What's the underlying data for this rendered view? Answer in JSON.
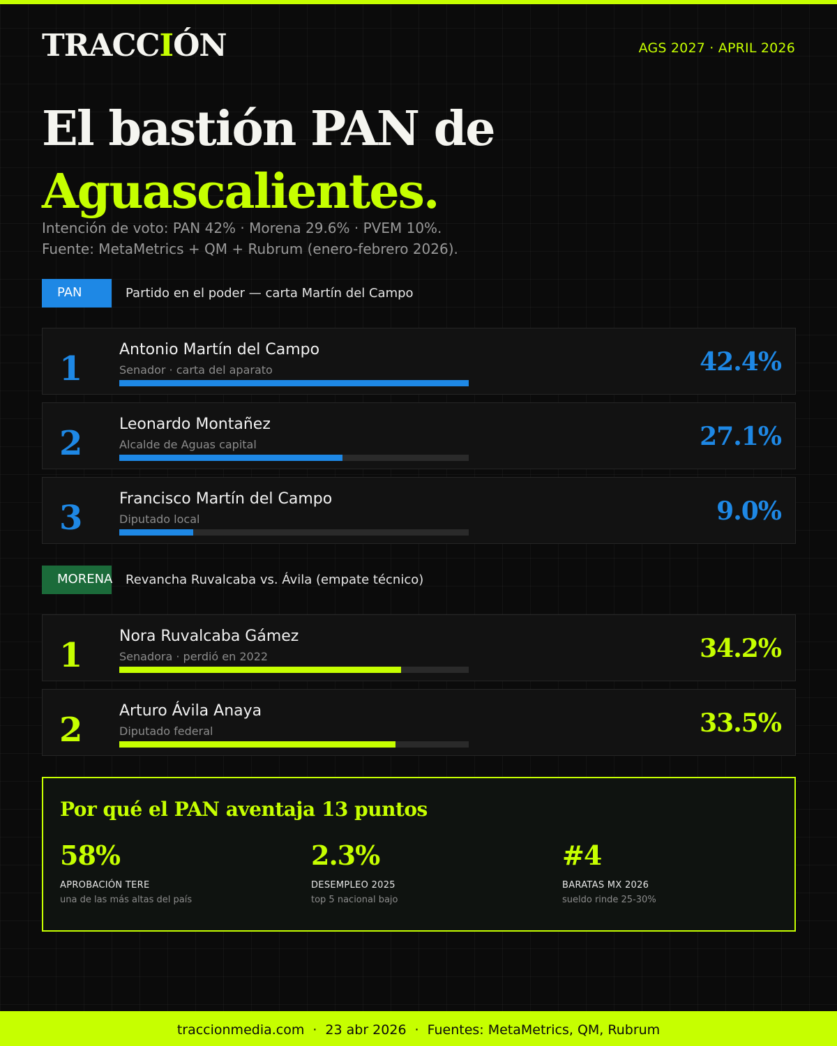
{
  "brand": {
    "prefix": "TRACC",
    "accent": "I",
    "suffix": "ÓN"
  },
  "dateline": "AGS 2027 · APRIL 2026",
  "headline": {
    "line1": "El bastión PAN de",
    "line2": "Aguascalientes."
  },
  "subline": {
    "line1": "Intención de voto: PAN 42% · Morena 29.6% · PVEM 10%.",
    "line2": "Fuente: MetaMetrics + QM + Rubrum (enero-febrero 2026)."
  },
  "colors": {
    "lime": "#c6ff00",
    "pan_blue": "#1e88e5",
    "morena_green": "#1b6b3a",
    "background": "#0b0b0b"
  },
  "pan": {
    "tag": "PAN",
    "description": "Partido en el poder — carta Martín del Campo",
    "candidates": [
      {
        "rank": "1",
        "name": "Antonio Martín del Campo",
        "role": "Senador · carta del aparato",
        "pct_label": "42.4%",
        "value": 42.4
      },
      {
        "rank": "2",
        "name": "Leonardo Montañez",
        "role": "Alcalde de Aguas capital",
        "pct_label": "27.1%",
        "value": 27.1
      },
      {
        "rank": "3",
        "name": "Francisco Martín del Campo",
        "role": "Diputado local",
        "pct_label": "9.0%",
        "value": 9.0
      }
    ]
  },
  "morena": {
    "tag": "MORENA",
    "description": "Revancha Ruvalcaba vs. Ávila (empate técnico)",
    "candidates": [
      {
        "rank": "1",
        "name": "Nora Ruvalcaba Gámez",
        "role": "Senadora · perdió en 2022",
        "pct_label": "34.2%",
        "value": 34.2
      },
      {
        "rank": "2",
        "name": "Arturo Ávila Anaya",
        "role": "Diputado federal",
        "pct_label": "33.5%",
        "value": 33.5
      }
    ]
  },
  "why": {
    "title": "Por qué el PAN aventaja 13 puntos",
    "stats": [
      {
        "value": "58%",
        "label": "APROBACIÓN TERE",
        "note": "una de las más altas del país"
      },
      {
        "value": "2.3%",
        "label": "DESEMPLEO 2025",
        "note": "top 5 nacional bajo"
      },
      {
        "value": "#4",
        "label": "BARATAS MX 2026",
        "note": "sueldo rinde 25-30%"
      }
    ]
  },
  "footer": {
    "site": "traccionmedia.com",
    "date": "23 abr 2026",
    "sources": "Fuentes: MetaMetrics, QM, Rubrum"
  }
}
